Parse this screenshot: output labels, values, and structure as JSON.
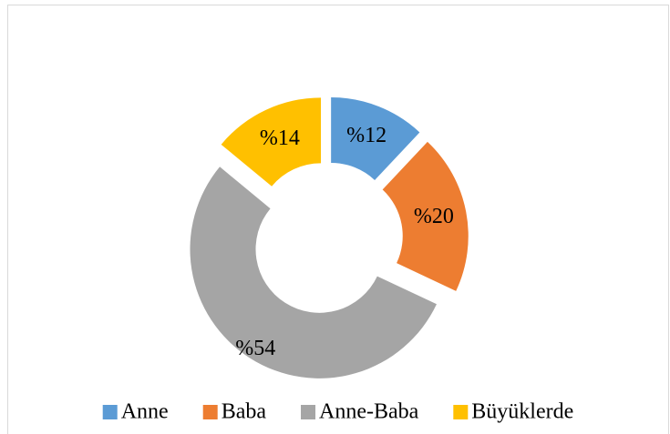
{
  "chart_data": {
    "type": "doughnut",
    "categories": [
      "Anne",
      "Baba",
      "Anne-Baba",
      "Büyüklerde"
    ],
    "values": [
      12,
      20,
      54,
      14
    ],
    "value_labels": [
      "%12",
      "%20",
      "%54",
      "%14"
    ],
    "colors": [
      "#5b9bd5",
      "#ed7d31",
      "#a5a5a5",
      "#ffc000"
    ],
    "exploded": true,
    "legend": "bottom"
  }
}
